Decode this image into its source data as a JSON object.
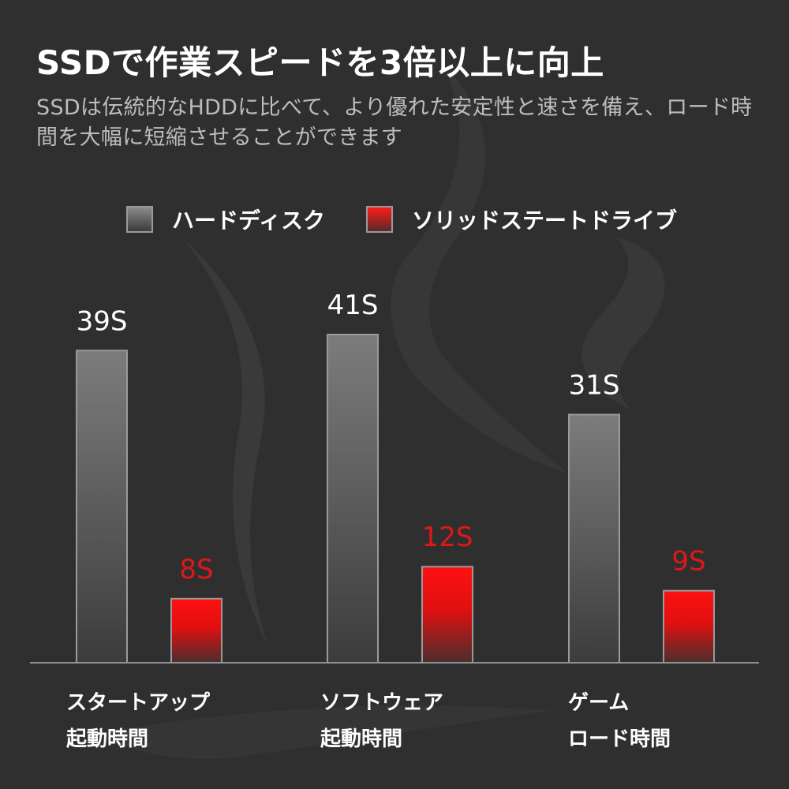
{
  "header": {
    "title": "SSDで作業スピードを3倍以上に向上",
    "subtitle": "SSDは伝統的なHDDに比べて、より優れた安定性と速さを備え、ロード時間を大幅に短縮させることができます"
  },
  "legend": {
    "items": [
      {
        "label": "ハードディスク",
        "color": "#7a7a7a"
      },
      {
        "label": "ソリッドステートドライブ",
        "color": "#ff1a1a"
      }
    ]
  },
  "chart_data": {
    "type": "bar",
    "categories": [
      {
        "line1": "スタートアップ",
        "line2": "起動時間"
      },
      {
        "line1": "ソフトウェア",
        "line2": "起動時間"
      },
      {
        "line1": "ゲーム",
        "line2": "ロード時間"
      }
    ],
    "series": [
      {
        "name": "ハードディスク",
        "values": [
          39,
          41,
          31
        ],
        "labels": [
          "39S",
          "41S",
          "31S"
        ],
        "color": "#7a7a7a",
        "label_color": "#ffffff"
      },
      {
        "name": "ソリッドステートドライブ",
        "values": [
          8,
          12,
          9
        ],
        "labels": [
          "8S",
          "12S",
          "9S"
        ],
        "color": "#ff1a1a",
        "label_color": "#e01818"
      }
    ],
    "ylim": [
      0,
      41
    ],
    "grid": false,
    "legend_position": "top"
  }
}
